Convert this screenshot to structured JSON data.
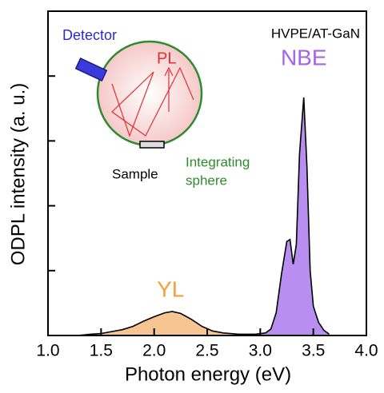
{
  "chart_data": {
    "type": "area",
    "xlabel": "Photon energy (eV)",
    "ylabel": "ODPL intensity (a. u.)",
    "xlim": [
      1,
      4
    ],
    "ylim": [
      0,
      5
    ],
    "xticks": [
      {
        "value": 1,
        "label": "1.0"
      },
      {
        "value": 1.5,
        "label": "1.5"
      },
      {
        "value": 2,
        "label": "2.0"
      },
      {
        "value": 2.5,
        "label": "2.5"
      },
      {
        "value": 3,
        "label": "3.0"
      },
      {
        "value": 3.5,
        "label": "3.5"
      },
      {
        "value": 4,
        "label": "4.0"
      }
    ],
    "yticks": [
      0,
      1,
      2,
      3,
      4,
      5
    ],
    "series": [
      {
        "name": "YL",
        "color": "#f7c592",
        "label_color": "#f0a33a",
        "x": [
          1.28,
          1.4,
          1.5,
          1.6,
          1.7,
          1.8,
          1.9,
          2.0,
          2.1,
          2.17,
          2.25,
          2.35,
          2.45,
          2.55,
          2.65,
          2.8,
          2.95
        ],
        "values": [
          0.0,
          0.02,
          0.03,
          0.06,
          0.09,
          0.14,
          0.22,
          0.29,
          0.35,
          0.37,
          0.34,
          0.25,
          0.14,
          0.07,
          0.04,
          0.02,
          0.02
        ]
      },
      {
        "name": "NBE",
        "color": "#b88ef0",
        "label_color": "#a266e6",
        "x": [
          2.95,
          3.05,
          3.1,
          3.15,
          3.2,
          3.25,
          3.28,
          3.31,
          3.34,
          3.37,
          3.41,
          3.44,
          3.47,
          3.5,
          3.55,
          3.6,
          3.65
        ],
        "values": [
          0.02,
          0.04,
          0.1,
          0.35,
          0.95,
          1.45,
          1.48,
          1.1,
          1.4,
          2.8,
          3.67,
          2.6,
          1.0,
          0.45,
          0.2,
          0.08,
          0.02
        ]
      }
    ],
    "annotation": "HVPE/AT-GaN",
    "inset": {
      "detector": "Detector",
      "pl": "PL",
      "sample": "Sample",
      "sphere": [
        "Integrating",
        "sphere"
      ]
    }
  }
}
